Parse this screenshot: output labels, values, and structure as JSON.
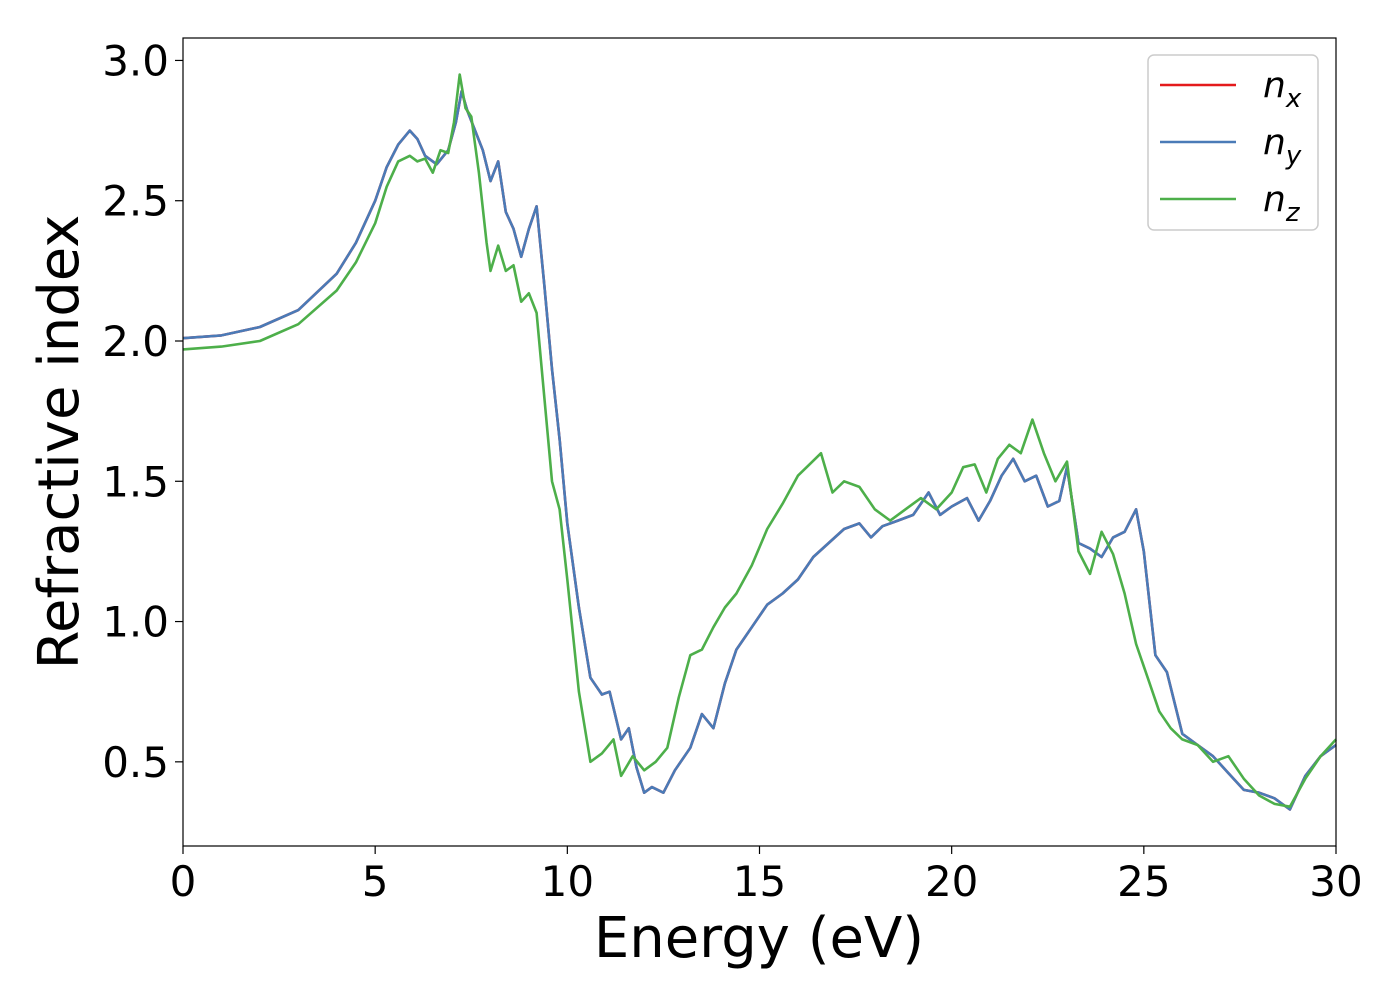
{
  "chart_data": {
    "type": "line",
    "xlabel": "Energy (eV)",
    "ylabel": "Refractive index",
    "xlim": [
      0,
      30
    ],
    "ylim": [
      0.2,
      3.08
    ],
    "xticks": [
      0,
      5,
      10,
      15,
      20,
      25,
      30
    ],
    "yticks": [
      0.5,
      1.0,
      1.5,
      2.0,
      2.5,
      3.0
    ],
    "xtick_labels": [
      "0",
      "5",
      "10",
      "15",
      "20",
      "25",
      "30"
    ],
    "ytick_labels": [
      "0.5",
      "1.0",
      "1.5",
      "2.0",
      "2.5",
      "3.0"
    ],
    "grid": false,
    "legend_position": "top-right",
    "series": [
      {
        "name": "n",
        "sub": "x",
        "color": "#e41a1c",
        "x": [
          0,
          1,
          2,
          3,
          4,
          4.5,
          5,
          5.3,
          5.6,
          5.9,
          6.1,
          6.3,
          6.6,
          6.9,
          7.1,
          7.25,
          7.4,
          7.6,
          7.8,
          8.0,
          8.2,
          8.4,
          8.6,
          8.8,
          9.0,
          9.2,
          9.4,
          9.6,
          9.8,
          10.0,
          10.3,
          10.6,
          10.9,
          11.1,
          11.4,
          11.6,
          11.8,
          12.0,
          12.2,
          12.5,
          12.8,
          13.2,
          13.5,
          13.8,
          14.1,
          14.4,
          14.8,
          15.2,
          15.6,
          16.0,
          16.4,
          16.8,
          17.2,
          17.6,
          17.9,
          18.2,
          18.6,
          19.0,
          19.4,
          19.7,
          20.0,
          20.4,
          20.7,
          21.0,
          21.3,
          21.6,
          21.9,
          22.2,
          22.5,
          22.8,
          23.0,
          23.3,
          23.6,
          23.9,
          24.2,
          24.5,
          24.8,
          25.0,
          25.3,
          25.6,
          26.0,
          26.4,
          26.8,
          27.2,
          27.6,
          28.0,
          28.4,
          28.8,
          29.2,
          29.6,
          30.0
        ],
        "y": [
          2.01,
          2.02,
          2.05,
          2.11,
          2.24,
          2.35,
          2.5,
          2.62,
          2.7,
          2.75,
          2.72,
          2.66,
          2.63,
          2.68,
          2.78,
          2.89,
          2.82,
          2.75,
          2.68,
          2.57,
          2.64,
          2.46,
          2.4,
          2.3,
          2.4,
          2.48,
          2.2,
          1.9,
          1.65,
          1.35,
          1.05,
          0.8,
          0.74,
          0.75,
          0.58,
          0.62,
          0.48,
          0.39,
          0.41,
          0.39,
          0.47,
          0.55,
          0.67,
          0.62,
          0.78,
          0.9,
          0.98,
          1.06,
          1.1,
          1.15,
          1.23,
          1.28,
          1.33,
          1.35,
          1.3,
          1.34,
          1.36,
          1.38,
          1.46,
          1.38,
          1.41,
          1.44,
          1.36,
          1.43,
          1.52,
          1.58,
          1.5,
          1.52,
          1.41,
          1.43,
          1.55,
          1.28,
          1.26,
          1.23,
          1.3,
          1.32,
          1.4,
          1.25,
          0.88,
          0.82,
          0.6,
          0.56,
          0.52,
          0.46,
          0.4,
          0.39,
          0.37,
          0.33,
          0.45,
          0.52,
          0.56
        ]
      },
      {
        "name": "n",
        "sub": "y",
        "color": "#4a7bb7",
        "x": [
          0,
          1,
          2,
          3,
          4,
          4.5,
          5,
          5.3,
          5.6,
          5.9,
          6.1,
          6.3,
          6.6,
          6.9,
          7.1,
          7.25,
          7.4,
          7.6,
          7.8,
          8.0,
          8.2,
          8.4,
          8.6,
          8.8,
          9.0,
          9.2,
          9.4,
          9.6,
          9.8,
          10.0,
          10.3,
          10.6,
          10.9,
          11.1,
          11.4,
          11.6,
          11.8,
          12.0,
          12.2,
          12.5,
          12.8,
          13.2,
          13.5,
          13.8,
          14.1,
          14.4,
          14.8,
          15.2,
          15.6,
          16.0,
          16.4,
          16.8,
          17.2,
          17.6,
          17.9,
          18.2,
          18.6,
          19.0,
          19.4,
          19.7,
          20.0,
          20.4,
          20.7,
          21.0,
          21.3,
          21.6,
          21.9,
          22.2,
          22.5,
          22.8,
          23.0,
          23.3,
          23.6,
          23.9,
          24.2,
          24.5,
          24.8,
          25.0,
          25.3,
          25.6,
          26.0,
          26.4,
          26.8,
          27.2,
          27.6,
          28.0,
          28.4,
          28.8,
          29.2,
          29.6,
          30.0
        ],
        "y": [
          2.01,
          2.02,
          2.05,
          2.11,
          2.24,
          2.35,
          2.5,
          2.62,
          2.7,
          2.75,
          2.72,
          2.66,
          2.63,
          2.68,
          2.78,
          2.89,
          2.82,
          2.75,
          2.68,
          2.57,
          2.64,
          2.46,
          2.4,
          2.3,
          2.4,
          2.48,
          2.2,
          1.9,
          1.65,
          1.35,
          1.05,
          0.8,
          0.74,
          0.75,
          0.58,
          0.62,
          0.48,
          0.39,
          0.41,
          0.39,
          0.47,
          0.55,
          0.67,
          0.62,
          0.78,
          0.9,
          0.98,
          1.06,
          1.1,
          1.15,
          1.23,
          1.28,
          1.33,
          1.35,
          1.3,
          1.34,
          1.36,
          1.38,
          1.46,
          1.38,
          1.41,
          1.44,
          1.36,
          1.43,
          1.52,
          1.58,
          1.5,
          1.52,
          1.41,
          1.43,
          1.55,
          1.28,
          1.26,
          1.23,
          1.3,
          1.32,
          1.4,
          1.25,
          0.88,
          0.82,
          0.6,
          0.56,
          0.52,
          0.46,
          0.4,
          0.39,
          0.37,
          0.33,
          0.45,
          0.52,
          0.56
        ]
      },
      {
        "name": "n",
        "sub": "z",
        "color": "#4daf4a",
        "x": [
          0,
          1,
          2,
          3,
          4,
          4.5,
          5,
          5.3,
          5.6,
          5.9,
          6.1,
          6.3,
          6.5,
          6.7,
          6.9,
          7.05,
          7.2,
          7.35,
          7.5,
          7.7,
          7.9,
          8.0,
          8.2,
          8.4,
          8.6,
          8.8,
          9.0,
          9.2,
          9.4,
          9.6,
          9.8,
          10.0,
          10.3,
          10.6,
          10.9,
          11.2,
          11.4,
          11.7,
          12.0,
          12.3,
          12.6,
          12.9,
          13.2,
          13.5,
          13.8,
          14.1,
          14.4,
          14.8,
          15.2,
          15.6,
          16.0,
          16.3,
          16.6,
          16.9,
          17.2,
          17.6,
          18.0,
          18.4,
          18.8,
          19.2,
          19.6,
          20.0,
          20.3,
          20.6,
          20.9,
          21.2,
          21.5,
          21.8,
          22.1,
          22.4,
          22.7,
          23.0,
          23.3,
          23.6,
          23.9,
          24.2,
          24.5,
          24.8,
          25.1,
          25.4,
          25.7,
          26.0,
          26.4,
          26.8,
          27.2,
          27.6,
          28.0,
          28.4,
          28.8,
          29.2,
          29.6,
          30.0
        ],
        "y": [
          1.97,
          1.98,
          2.0,
          2.06,
          2.18,
          2.28,
          2.42,
          2.55,
          2.64,
          2.66,
          2.64,
          2.65,
          2.6,
          2.68,
          2.67,
          2.78,
          2.95,
          2.83,
          2.8,
          2.6,
          2.35,
          2.25,
          2.34,
          2.25,
          2.27,
          2.14,
          2.17,
          2.1,
          1.8,
          1.5,
          1.4,
          1.15,
          0.75,
          0.5,
          0.53,
          0.58,
          0.45,
          0.52,
          0.47,
          0.5,
          0.55,
          0.73,
          0.88,
          0.9,
          0.98,
          1.05,
          1.1,
          1.2,
          1.33,
          1.42,
          1.52,
          1.56,
          1.6,
          1.46,
          1.5,
          1.48,
          1.4,
          1.36,
          1.4,
          1.44,
          1.4,
          1.46,
          1.55,
          1.56,
          1.46,
          1.58,
          1.63,
          1.6,
          1.72,
          1.6,
          1.5,
          1.57,
          1.25,
          1.17,
          1.32,
          1.24,
          1.1,
          0.92,
          0.8,
          0.68,
          0.62,
          0.58,
          0.56,
          0.5,
          0.52,
          0.44,
          0.38,
          0.35,
          0.34,
          0.44,
          0.52,
          0.58
        ]
      }
    ]
  }
}
